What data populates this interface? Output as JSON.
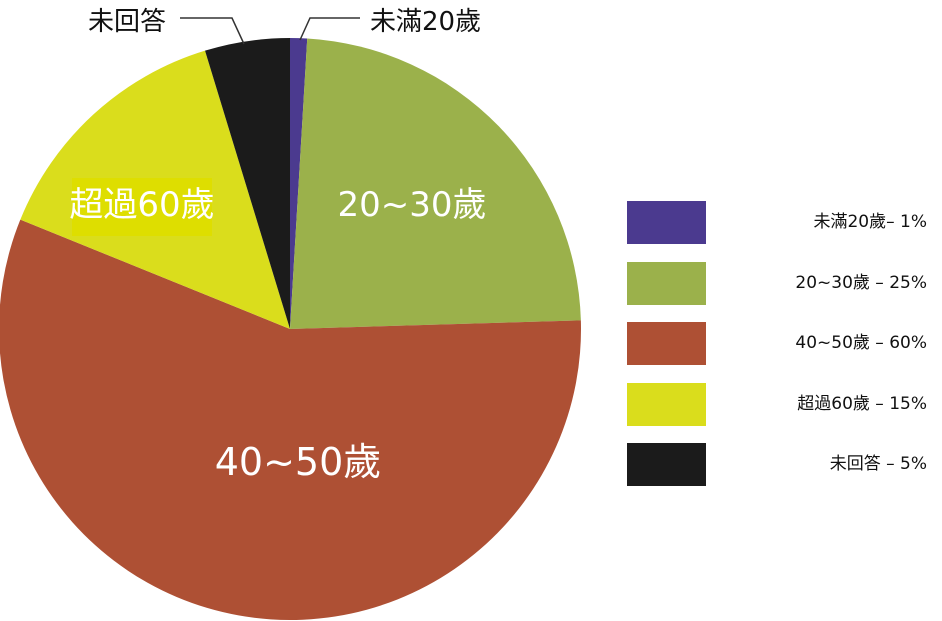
{
  "chart_data": {
    "type": "pie",
    "start_angle_deg": 0,
    "direction": "clockwise",
    "slices": [
      {
        "label": "未滿20歲",
        "value": 1,
        "color": "#4b3a8f",
        "callout": "未滿20歲"
      },
      {
        "label": "20~30歲",
        "value": 25,
        "color": "#9bb14b",
        "inside_label": "20~30歲"
      },
      {
        "label": "40~50歲",
        "value": 60,
        "color": "#ae5034",
        "inside_label": "40~50歲"
      },
      {
        "label": "超過60歲",
        "value": 15,
        "color": "#dadd1c",
        "inside_label": "超過60歲"
      },
      {
        "label": "未回答",
        "value": 5,
        "color": "#1b1b1b",
        "callout": "未回答"
      }
    ],
    "legend": {
      "position": "right",
      "entries": [
        "未滿20歲– 1%",
        "20~30歲 – 25%",
        "40~50歲 – 60%",
        "超過60歲 – 15%",
        "未回答 – 5%"
      ]
    }
  }
}
